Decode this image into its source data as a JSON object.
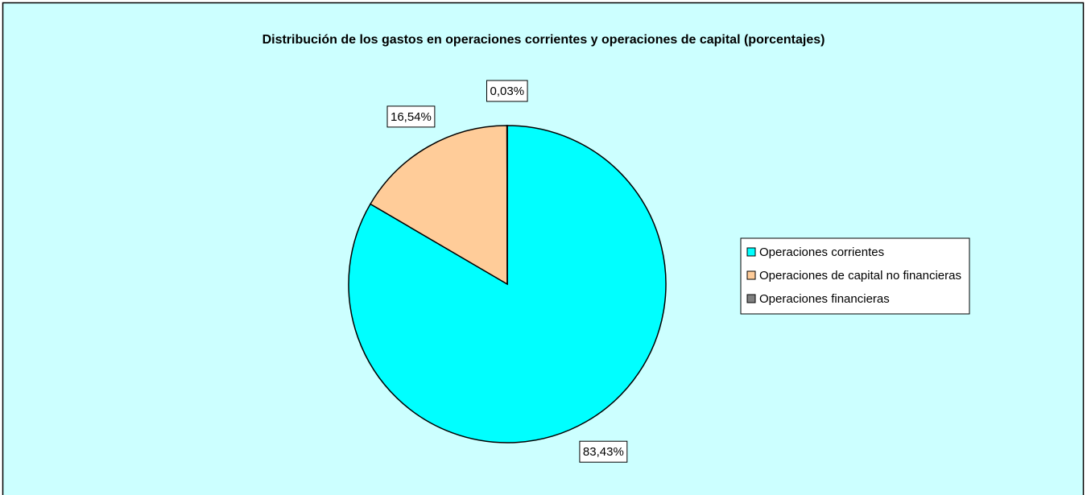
{
  "chart_data": {
    "type": "pie",
    "title": "Distribución de los gastos en operaciones corrientes y operaciones de capital (porcentajes)",
    "categories": [
      "Operaciones corrientes",
      "Operaciones de capital no financieras",
      "Operaciones financieras"
    ],
    "values": [
      83.43,
      16.54,
      0.03
    ],
    "value_labels": [
      "83,43%",
      "16,54%",
      "0,03%"
    ],
    "colors": [
      "#00ffff",
      "#ffcc99",
      "#808080"
    ],
    "legend": "right"
  }
}
